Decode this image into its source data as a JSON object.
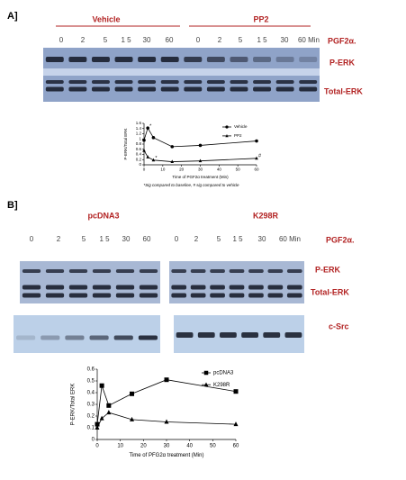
{
  "panel_a": {
    "label": "A]",
    "groups": [
      "Vehicle",
      "PP2"
    ],
    "lanes_1": [
      "0",
      "2",
      "5",
      "1 5",
      "30",
      "60"
    ],
    "lanes_2": [
      "0",
      "2",
      "5",
      "1 5",
      "30",
      "60 Min"
    ],
    "treatment": "PGF2α.",
    "blots": [
      "P-ERK",
      "Total-ERK"
    ]
  },
  "panel_b": {
    "label": "B]",
    "groups": [
      "pcDNA3",
      "K298R"
    ],
    "lanes_1": [
      "0",
      "2",
      "5",
      "1 5",
      "30",
      "60"
    ],
    "lanes_2": [
      "0",
      "2",
      "5",
      "1 5",
      "30",
      "60 Min"
    ],
    "treatment": "PGF2α.",
    "blots": [
      "P-ERK",
      "Total-ERK",
      "c-Src"
    ]
  },
  "chart_data": [
    {
      "type": "line",
      "xlabel": "Time of PGF2α treatment (Min)",
      "ylabel": "P-ERK/Total ERK",
      "footnote": "*Sig compared to baseline, # sig compared to vehicle",
      "x": [
        0,
        2,
        5,
        15,
        30,
        60
      ],
      "series": [
        {
          "name": "Vehicle",
          "color": "#000000",
          "marker": "circle",
          "values": [
            0.95,
            1.42,
            1.05,
            0.7,
            0.75,
            0.92
          ]
        },
        {
          "name": "PP2",
          "color": "#000000",
          "marker": "triangle",
          "values": [
            0.55,
            0.3,
            0.18,
            0.12,
            0.15,
            0.25
          ]
        }
      ],
      "annotations": [
        {
          "text": "*",
          "x": 2,
          "y": 1.5
        },
        {
          "text": "*",
          "x": 5,
          "y": 0.26
        },
        {
          "text": "#",
          "x": 60,
          "y": 0.35
        }
      ],
      "xlim": [
        0,
        60
      ],
      "ylim": [
        0,
        1.6
      ],
      "xticks": [
        0,
        10,
        20,
        30,
        40,
        50,
        60
      ],
      "yticks": [
        0,
        0.2,
        0.4,
        0.6,
        0.8,
        1,
        1.2,
        1.4,
        1.6
      ],
      "legend": "upper right"
    },
    {
      "type": "line",
      "xlabel": "Time of PFG2α treatment (Min)",
      "ylabel": "P-ERK/Total ERK",
      "x": [
        0,
        2,
        5,
        15,
        30,
        60
      ],
      "series": [
        {
          "name": "pcDNA3",
          "color": "#000000",
          "marker": "square",
          "values": [
            0.13,
            0.46,
            0.29,
            0.39,
            0.51,
            0.41
          ]
        },
        {
          "name": "K298R",
          "color": "#000000",
          "marker": "triangle",
          "values": [
            0.1,
            0.18,
            0.23,
            0.17,
            0.15,
            0.13
          ]
        }
      ],
      "xlim": [
        0,
        60
      ],
      "ylim": [
        0,
        0.6
      ],
      "xticks": [
        0,
        10,
        20,
        30,
        40,
        50,
        60
      ],
      "yticks": [
        0,
        0.1,
        0.2,
        0.3,
        0.4,
        0.5,
        0.6
      ],
      "legend": "upper right"
    }
  ]
}
